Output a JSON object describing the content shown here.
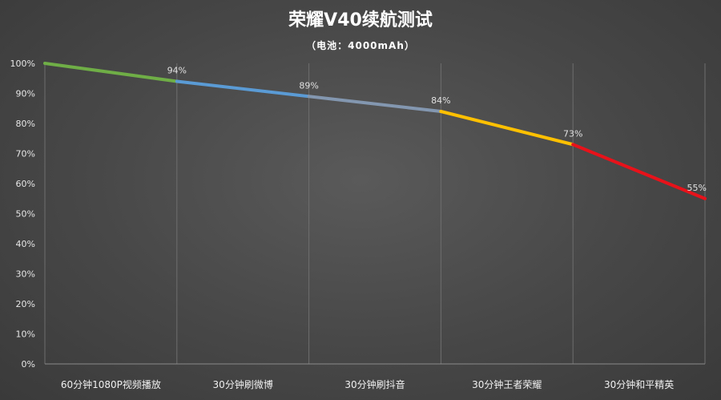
{
  "chart_data": {
    "type": "line",
    "title": "荣耀V40续航测试",
    "subtitle": "（电池：4000mAh）",
    "categories": [
      "60分钟1080P视频播放",
      "30分钟刷微博",
      "30分钟刷抖音",
      "30分钟王者荣耀",
      "30分钟和平精英"
    ],
    "x": [
      0,
      1,
      2,
      3,
      4,
      5
    ],
    "values": [
      100,
      94,
      89,
      84,
      73,
      55
    ],
    "data_labels": [
      "94%",
      "89%",
      "84%",
      "73%",
      "55%"
    ],
    "segment_colors": [
      "#6fad47",
      "#5b9bd5",
      "#8497b0",
      "#ffc000",
      "#e8121b"
    ],
    "yticks": [
      "0%",
      "10%",
      "20%",
      "30%",
      "40%",
      "50%",
      "60%",
      "70%",
      "80%",
      "90%",
      "100%"
    ],
    "ylim": [
      0,
      100
    ],
    "grid": "vertical",
    "legend": "none",
    "xlabel": "",
    "ylabel": ""
  }
}
